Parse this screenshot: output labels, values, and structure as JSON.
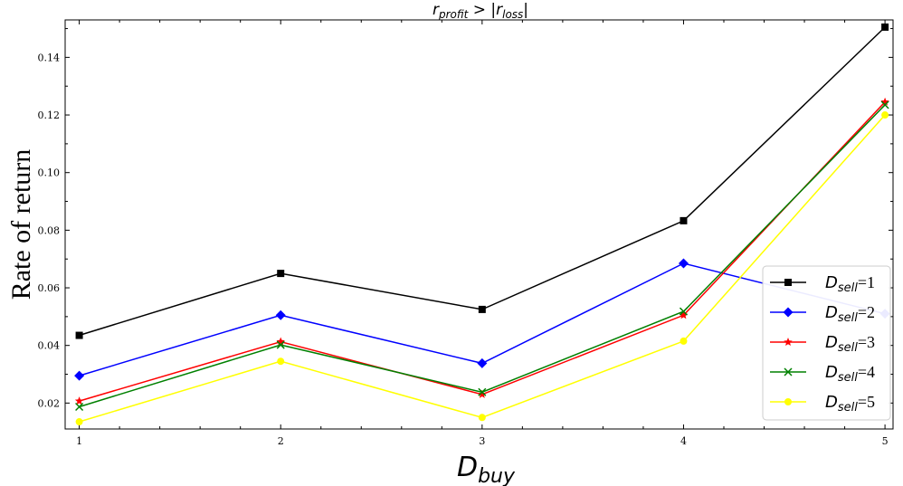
{
  "chart_data": {
    "type": "line",
    "title": {
      "r1": "r",
      "s1": "profit",
      "mid": " > |",
      "r2": "r",
      "s2": "loss",
      "end": "|"
    },
    "xlabel": {
      "main": "D",
      "sub": "buy"
    },
    "ylabel": "Rate of return",
    "x": [
      1,
      2,
      3,
      4,
      5
    ],
    "xticks": [
      "1",
      "2",
      "3",
      "4",
      "5"
    ],
    "xlim": [
      0.93,
      5.04
    ],
    "ylim": [
      0.011,
      0.153
    ],
    "yticks": [
      "0.02",
      "0.04",
      "0.06",
      "0.08",
      "0.10",
      "0.12",
      "0.14"
    ],
    "ytick_values": [
      0.02,
      0.04,
      0.06,
      0.08,
      0.1,
      0.12,
      0.14
    ],
    "grid": false,
    "legend_position": "lower-right",
    "series": [
      {
        "name_main": "D",
        "name_sub": "sell",
        "name_value": "=1",
        "color": "#000000",
        "marker": "square",
        "values": [
          0.0435,
          0.065,
          0.0525,
          0.0833,
          0.1505
        ]
      },
      {
        "name_main": "D",
        "name_sub": "sell",
        "name_value": "=2",
        "color": "#0000ff",
        "marker": "diamond",
        "values": [
          0.0295,
          0.0505,
          0.0338,
          0.0685,
          0.051
        ]
      },
      {
        "name_main": "D",
        "name_sub": "sell",
        "name_value": "=3",
        "color": "#ff0000",
        "marker": "star",
        "values": [
          0.0207,
          0.0413,
          0.023,
          0.0505,
          0.1245
        ]
      },
      {
        "name_main": "D",
        "name_sub": "sell",
        "name_value": "=4",
        "color": "#008000",
        "marker": "x",
        "values": [
          0.0187,
          0.0402,
          0.0238,
          0.0518,
          0.1235
        ]
      },
      {
        "name_main": "D",
        "name_sub": "sell",
        "name_value": "=5",
        "color": "#ffff00",
        "marker": "circle",
        "values": [
          0.0135,
          0.0345,
          0.015,
          0.0415,
          0.12
        ]
      }
    ]
  }
}
